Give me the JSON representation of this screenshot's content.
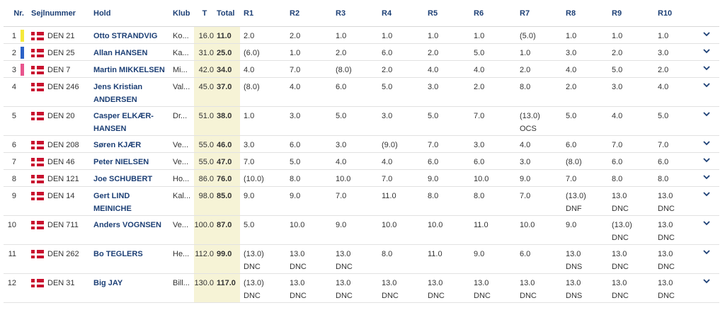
{
  "headers": {
    "nr": "Nr.",
    "sail": "Sejlnummer",
    "team": "Hold",
    "club": "Klub",
    "t": "T",
    "total": "Total",
    "races": [
      "R1",
      "R2",
      "R3",
      "R4",
      "R5",
      "R6",
      "R7",
      "R8",
      "R9",
      "R10"
    ]
  },
  "rows": [
    {
      "nr": "1",
      "color": "#f5e93a",
      "sail": "DEN 21",
      "name": "Otto STRANDVIG",
      "club": "Ko...",
      "t": "16.0",
      "total": "11.0",
      "r": [
        [
          "2.0",
          ""
        ],
        [
          "2.0",
          ""
        ],
        [
          "1.0",
          ""
        ],
        [
          "1.0",
          ""
        ],
        [
          "1.0",
          ""
        ],
        [
          "1.0",
          ""
        ],
        [
          "(5.0)",
          ""
        ],
        [
          "1.0",
          ""
        ],
        [
          "1.0",
          ""
        ],
        [
          "1.0",
          ""
        ]
      ]
    },
    {
      "nr": "2",
      "color": "#2c62c6",
      "sail": "DEN 25",
      "name": "Allan HANSEN",
      "club": "Ka...",
      "t": "31.0",
      "total": "25.0",
      "r": [
        [
          "(6.0)",
          ""
        ],
        [
          "1.0",
          ""
        ],
        [
          "2.0",
          ""
        ],
        [
          "6.0",
          ""
        ],
        [
          "2.0",
          ""
        ],
        [
          "5.0",
          ""
        ],
        [
          "1.0",
          ""
        ],
        [
          "3.0",
          ""
        ],
        [
          "2.0",
          ""
        ],
        [
          "3.0",
          ""
        ]
      ]
    },
    {
      "nr": "3",
      "color": "#e8558d",
      "sail": "DEN 7",
      "name": "Martin MIKKELSEN",
      "club": "Mi...",
      "t": "42.0",
      "total": "34.0",
      "r": [
        [
          "4.0",
          ""
        ],
        [
          "7.0",
          ""
        ],
        [
          "(8.0)",
          ""
        ],
        [
          "2.0",
          ""
        ],
        [
          "4.0",
          ""
        ],
        [
          "4.0",
          ""
        ],
        [
          "2.0",
          ""
        ],
        [
          "4.0",
          ""
        ],
        [
          "5.0",
          ""
        ],
        [
          "2.0",
          ""
        ]
      ]
    },
    {
      "nr": "4",
      "color": "",
      "sail": "DEN 246",
      "name": "Jens Kristian ANDERSEN",
      "club": "Val...",
      "t": "45.0",
      "total": "37.0",
      "r": [
        [
          "(8.0)",
          ""
        ],
        [
          "4.0",
          ""
        ],
        [
          "6.0",
          ""
        ],
        [
          "5.0",
          ""
        ],
        [
          "3.0",
          ""
        ],
        [
          "2.0",
          ""
        ],
        [
          "8.0",
          ""
        ],
        [
          "2.0",
          ""
        ],
        [
          "3.0",
          ""
        ],
        [
          "4.0",
          ""
        ]
      ]
    },
    {
      "nr": "5",
      "color": "",
      "sail": "DEN 20",
      "name": "Casper ELKÆR-HANSEN",
      "club": "Dr...",
      "t": "51.0",
      "total": "38.0",
      "r": [
        [
          "1.0",
          ""
        ],
        [
          "3.0",
          ""
        ],
        [
          "5.0",
          ""
        ],
        [
          "3.0",
          ""
        ],
        [
          "5.0",
          ""
        ],
        [
          "7.0",
          ""
        ],
        [
          "(13.0)",
          "OCS"
        ],
        [
          "5.0",
          ""
        ],
        [
          "4.0",
          ""
        ],
        [
          "5.0",
          ""
        ]
      ]
    },
    {
      "nr": "6",
      "color": "",
      "sail": "DEN 208",
      "name": "Søren KJÆR",
      "club": "Ve...",
      "t": "55.0",
      "total": "46.0",
      "r": [
        [
          "3.0",
          ""
        ],
        [
          "6.0",
          ""
        ],
        [
          "3.0",
          ""
        ],
        [
          "(9.0)",
          ""
        ],
        [
          "7.0",
          ""
        ],
        [
          "3.0",
          ""
        ],
        [
          "4.0",
          ""
        ],
        [
          "6.0",
          ""
        ],
        [
          "7.0",
          ""
        ],
        [
          "7.0",
          ""
        ]
      ]
    },
    {
      "nr": "7",
      "color": "",
      "sail": "DEN 46",
      "name": "Peter NIELSEN",
      "club": "Ve...",
      "t": "55.0",
      "total": "47.0",
      "r": [
        [
          "7.0",
          ""
        ],
        [
          "5.0",
          ""
        ],
        [
          "4.0",
          ""
        ],
        [
          "4.0",
          ""
        ],
        [
          "6.0",
          ""
        ],
        [
          "6.0",
          ""
        ],
        [
          "3.0",
          ""
        ],
        [
          "(8.0)",
          ""
        ],
        [
          "6.0",
          ""
        ],
        [
          "6.0",
          ""
        ]
      ]
    },
    {
      "nr": "8",
      "color": "",
      "sail": "DEN 121",
      "name": "Joe SCHUBERT",
      "club": "Ho...",
      "t": "86.0",
      "total": "76.0",
      "r": [
        [
          "(10.0)",
          ""
        ],
        [
          "8.0",
          ""
        ],
        [
          "10.0",
          ""
        ],
        [
          "7.0",
          ""
        ],
        [
          "9.0",
          ""
        ],
        [
          "10.0",
          ""
        ],
        [
          "9.0",
          ""
        ],
        [
          "7.0",
          ""
        ],
        [
          "8.0",
          ""
        ],
        [
          "8.0",
          ""
        ]
      ]
    },
    {
      "nr": "9",
      "color": "",
      "sail": "DEN 14",
      "name": "Gert LIND MEINICHE",
      "club": "Kal...",
      "t": "98.0",
      "total": "85.0",
      "r": [
        [
          "9.0",
          ""
        ],
        [
          "9.0",
          ""
        ],
        [
          "7.0",
          ""
        ],
        [
          "11.0",
          ""
        ],
        [
          "8.0",
          ""
        ],
        [
          "8.0",
          ""
        ],
        [
          "7.0",
          ""
        ],
        [
          "(13.0)",
          "DNF"
        ],
        [
          "13.0",
          "DNC"
        ],
        [
          "13.0",
          "DNC"
        ]
      ]
    },
    {
      "nr": "10",
      "color": "",
      "sail": "DEN 711",
      "name": "Anders VOGNSEN",
      "club": "Ve...",
      "t": "100.0",
      "total": "87.0",
      "r": [
        [
          "5.0",
          ""
        ],
        [
          "10.0",
          ""
        ],
        [
          "9.0",
          ""
        ],
        [
          "10.0",
          ""
        ],
        [
          "10.0",
          ""
        ],
        [
          "11.0",
          ""
        ],
        [
          "10.0",
          ""
        ],
        [
          "9.0",
          ""
        ],
        [
          "(13.0)",
          "DNC"
        ],
        [
          "13.0",
          "DNC"
        ]
      ]
    },
    {
      "nr": "11",
      "color": "",
      "sail": "DEN 262",
      "name": "Bo TEGLERS",
      "club": "He...",
      "t": "112.0",
      "total": "99.0",
      "r": [
        [
          "(13.0)",
          "DNC"
        ],
        [
          "13.0",
          "DNC"
        ],
        [
          "13.0",
          "DNC"
        ],
        [
          "8.0",
          ""
        ],
        [
          "11.0",
          ""
        ],
        [
          "9.0",
          ""
        ],
        [
          "6.0",
          ""
        ],
        [
          "13.0",
          "DNS"
        ],
        [
          "13.0",
          "DNC"
        ],
        [
          "13.0",
          "DNC"
        ]
      ]
    },
    {
      "nr": "12",
      "color": "",
      "sail": "DEN 31",
      "name": "Big JAY",
      "club": "Bill...",
      "t": "130.0",
      "total": "117.0",
      "r": [
        [
          "(13.0)",
          "DNC"
        ],
        [
          "13.0",
          "DNC"
        ],
        [
          "13.0",
          "DNC"
        ],
        [
          "13.0",
          "DNC"
        ],
        [
          "13.0",
          "DNC"
        ],
        [
          "13.0",
          "DNC"
        ],
        [
          "13.0",
          "DNC"
        ],
        [
          "13.0",
          "DNS"
        ],
        [
          "13.0",
          "DNC"
        ],
        [
          "13.0",
          "DNC"
        ]
      ]
    }
  ]
}
